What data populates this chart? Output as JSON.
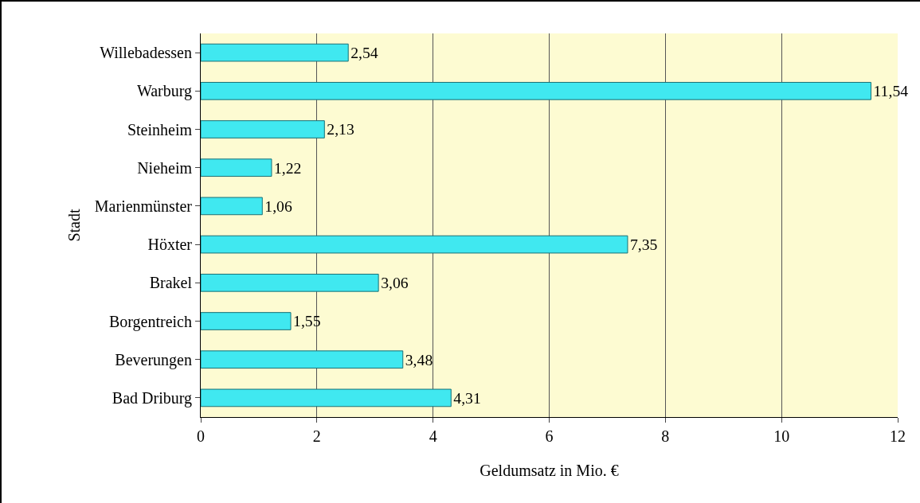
{
  "chart_data": {
    "type": "bar",
    "orientation": "horizontal",
    "xlabel": "Geldumsatz in Mio. €",
    "ylabel": "Stadt",
    "categories": [
      "Willebadessen",
      "Warburg",
      "Steinheim",
      "Nieheim",
      "Marienmünster",
      "Höxter",
      "Brakel",
      "Borgentreich",
      "Beverungen",
      "Bad Driburg"
    ],
    "values": [
      2.54,
      11.54,
      2.13,
      1.22,
      1.06,
      7.35,
      3.06,
      1.55,
      3.48,
      4.31
    ],
    "value_labels": [
      "2,54",
      "11,54",
      "2,13",
      "1,22",
      "1,06",
      "7,35",
      "3,06",
      "1,55",
      "3,48",
      "4,31"
    ],
    "color": "#40e8f0",
    "xlim": [
      0,
      12
    ],
    "xticks": [
      0,
      2,
      4,
      6,
      8,
      10,
      12
    ],
    "grid": "x",
    "legend": false
  }
}
